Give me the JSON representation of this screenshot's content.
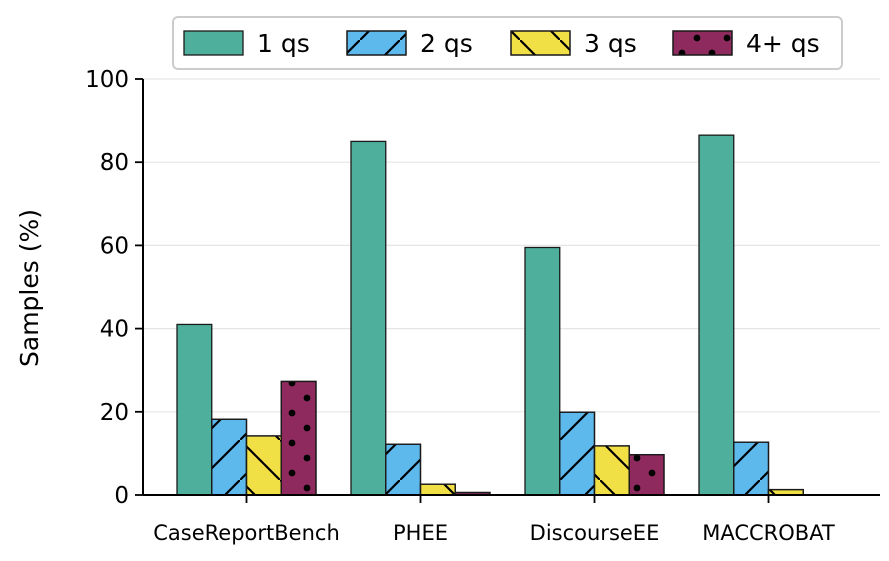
{
  "chart_data": {
    "type": "bar",
    "title": "",
    "xlabel": "",
    "ylabel": "Samples (%)",
    "ylim": [
      0,
      100
    ],
    "yticks": [
      "0",
      "20",
      "40",
      "60",
      "80",
      "100"
    ],
    "categories": [
      "CaseReportBench",
      "PHEE",
      "DiscourseEE",
      "MACCROBAT"
    ],
    "series": [
      {
        "name": "1 qs",
        "color": "#4DAF9C",
        "hatch": "none",
        "values": [
          41.0,
          85.0,
          59.5,
          86.5
        ]
      },
      {
        "name": "2 qs",
        "color": "#5DB8EC",
        "hatch": "diagonal",
        "values": [
          18.2,
          12.2,
          19.9,
          12.7
        ]
      },
      {
        "name": "3 qs",
        "color": "#F0E046",
        "hatch": "backslash",
        "values": [
          14.2,
          2.6,
          11.8,
          1.3
        ]
      },
      {
        "name": "4+ qs",
        "color": "#8E2A5E",
        "hatch": "dots",
        "values": [
          27.3,
          0.6,
          9.7,
          0.0
        ]
      }
    ],
    "grid": "horizontal",
    "legend_position": "top"
  }
}
